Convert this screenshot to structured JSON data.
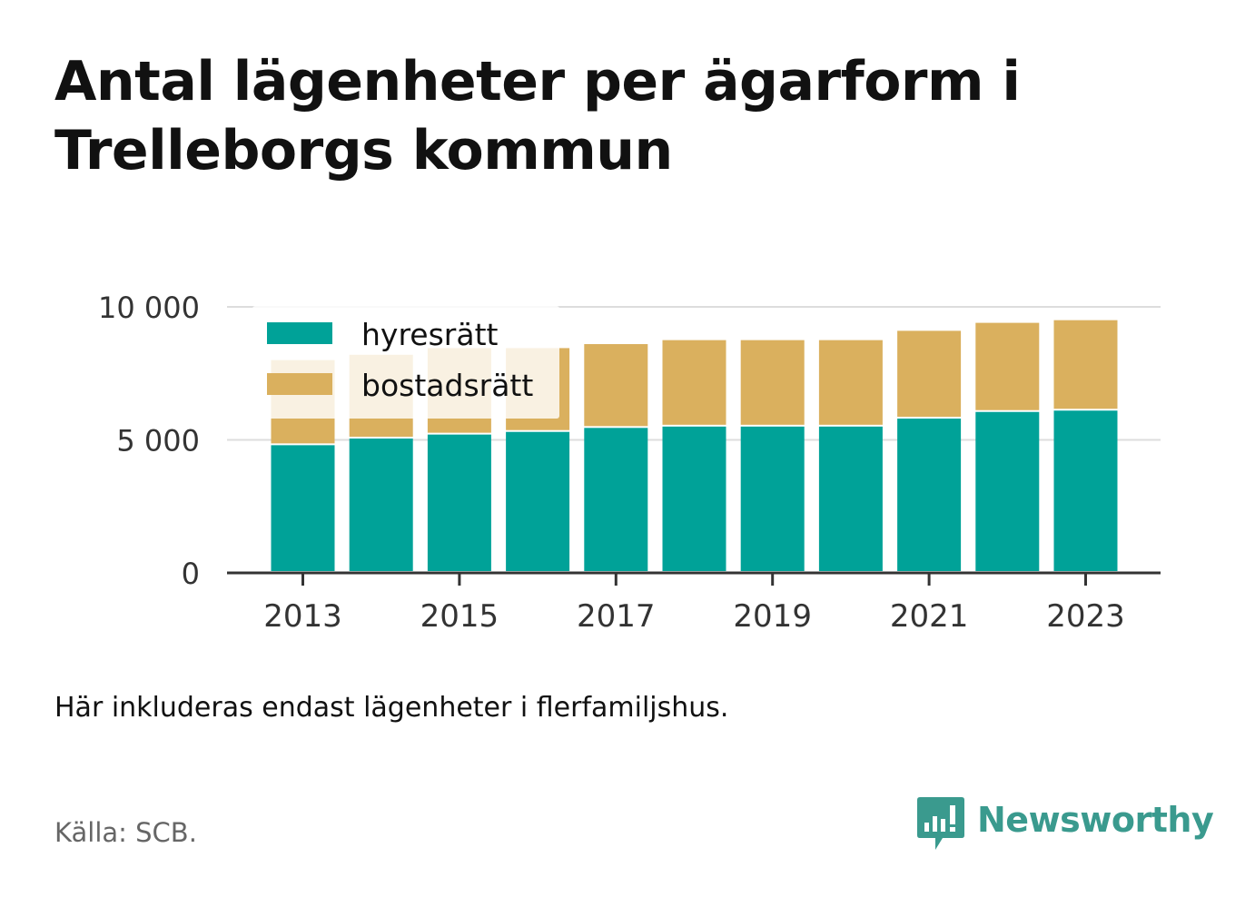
{
  "title_lines": [
    "Antal lägenheter per ägarform i",
    "Trelleborgs kommun"
  ],
  "note": "Här inkluderas endast lägenheter i flerfamiljshus.",
  "source": "Källa: SCB.",
  "brand": {
    "name": "Newsworthy",
    "icon": "newsworthy-logo-icon",
    "color": "#3a9a8e"
  },
  "colors": {
    "hyresratt": "#00a298",
    "bostadsratt": "#dab05e",
    "axis": "#333333",
    "grid": "#dddddd"
  },
  "chart_data": {
    "type": "bar",
    "stacked": true,
    "categories": [
      "2013",
      "2014",
      "2015",
      "2016",
      "2017",
      "2018",
      "2019",
      "2020",
      "2021",
      "2022",
      "2023"
    ],
    "x_tick_labels": [
      "2013",
      "2015",
      "2017",
      "2019",
      "2021",
      "2023"
    ],
    "series": [
      {
        "name": "hyresrätt",
        "color": "#00a298",
        "values": [
          4800,
          5050,
          5200,
          5300,
          5450,
          5500,
          5500,
          5500,
          5800,
          6050,
          6100
        ]
      },
      {
        "name": "bostadsrätt",
        "color": "#dab05e",
        "values": [
          3200,
          3150,
          3250,
          3150,
          3150,
          3250,
          3250,
          3250,
          3300,
          3350,
          3400
        ]
      }
    ],
    "ylim": [
      0,
      10000
    ],
    "y_ticks": [
      0,
      5000,
      10000
    ],
    "y_tick_labels": [
      "0",
      "5 000",
      "10 000"
    ],
    "grid": true,
    "legend_position": "top-left"
  }
}
